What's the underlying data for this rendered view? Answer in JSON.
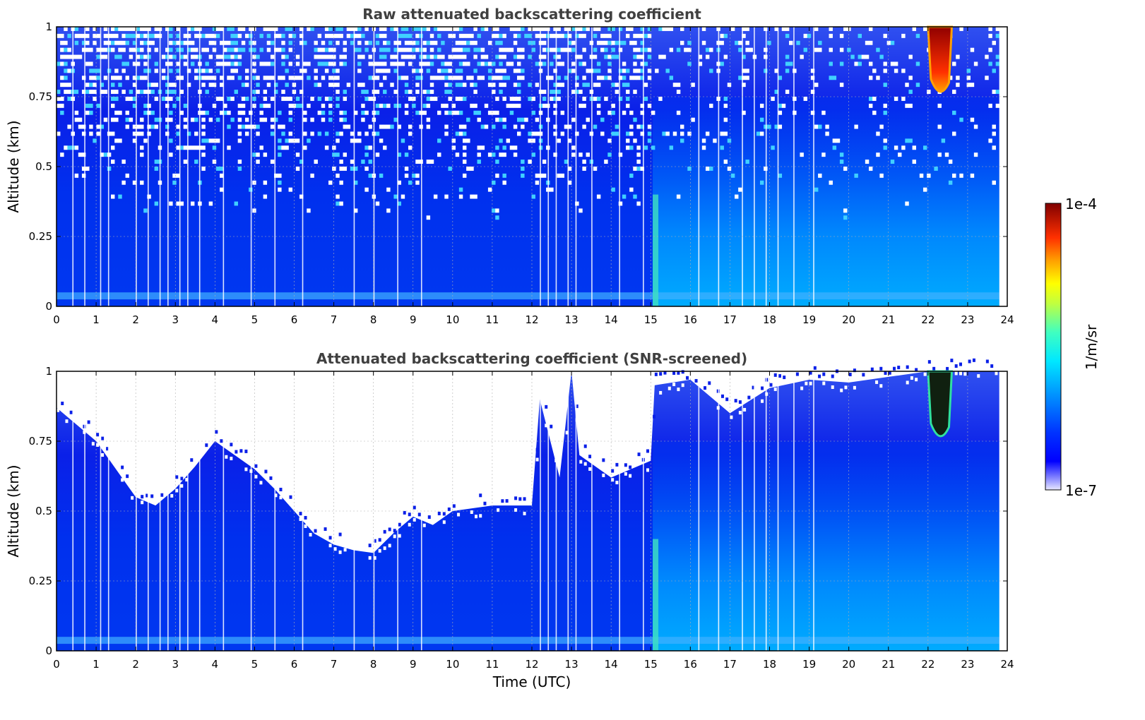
{
  "chart_data": [
    {
      "type": "heatmap",
      "title": "Raw attenuated backscattering coefficient",
      "xlabel": "",
      "ylabel": "Altitude (km)",
      "xlim": [
        0,
        24
      ],
      "ylim": [
        0,
        1
      ],
      "x_ticks": [
        "0",
        "1",
        "2",
        "3",
        "4",
        "5",
        "6",
        "7",
        "8",
        "9",
        "10",
        "11",
        "12",
        "13",
        "14",
        "15",
        "16",
        "17",
        "18",
        "19",
        "20",
        "21",
        "22",
        "23",
        "24"
      ],
      "y_ticks": [
        "0",
        "0.25",
        "0.5",
        "0.75",
        "1"
      ],
      "grid": true,
      "screened": false,
      "data_end_time": 23.8,
      "features": [
        {
          "description": "high backscatter plume",
          "time_range": [
            22.0,
            22.6
          ],
          "altitude_range": [
            0.75,
            1.0
          ]
        },
        {
          "description": "enhanced aerosol layer",
          "time_range": [
            15.0,
            23.8
          ],
          "altitude_range": [
            0.0,
            0.75
          ]
        }
      ]
    },
    {
      "type": "heatmap",
      "title": "Attenuated backscattering coefficient (SNR-screened)",
      "xlabel": "Time (UTC)",
      "ylabel": "Altitude (km)",
      "xlim": [
        0,
        24
      ],
      "ylim": [
        0,
        1
      ],
      "x_ticks": [
        "0",
        "1",
        "2",
        "3",
        "4",
        "5",
        "6",
        "7",
        "8",
        "9",
        "10",
        "11",
        "12",
        "13",
        "14",
        "15",
        "16",
        "17",
        "18",
        "19",
        "20",
        "21",
        "22",
        "23",
        "24"
      ],
      "y_ticks": [
        "0",
        "0.25",
        "0.5",
        "0.75",
        "1"
      ],
      "grid": true,
      "screened": true,
      "data_end_time": 23.8,
      "screen_boundary": [
        [
          0.0,
          0.87
        ],
        [
          1.0,
          0.75
        ],
        [
          1.5,
          0.65
        ],
        [
          2.0,
          0.55
        ],
        [
          2.5,
          0.52
        ],
        [
          3.0,
          0.58
        ],
        [
          3.5,
          0.66
        ],
        [
          4.0,
          0.75
        ],
        [
          4.5,
          0.7
        ],
        [
          5.0,
          0.65
        ],
        [
          5.5,
          0.58
        ],
        [
          6.0,
          0.5
        ],
        [
          6.5,
          0.42
        ],
        [
          7.0,
          0.38
        ],
        [
          7.5,
          0.36
        ],
        [
          8.0,
          0.35
        ],
        [
          8.5,
          0.42
        ],
        [
          9.0,
          0.48
        ],
        [
          9.5,
          0.45
        ],
        [
          10.0,
          0.5
        ],
        [
          11.0,
          0.52
        ],
        [
          12.0,
          0.52
        ],
        [
          12.2,
          0.9
        ],
        [
          12.7,
          0.62
        ],
        [
          13.0,
          1.0
        ],
        [
          13.2,
          0.7
        ],
        [
          14.0,
          0.62
        ],
        [
          15.0,
          0.68
        ],
        [
          15.1,
          0.95
        ],
        [
          16.0,
          0.97
        ],
        [
          17.0,
          0.85
        ],
        [
          18.0,
          0.94
        ],
        [
          19.0,
          0.97
        ],
        [
          20.0,
          0.96
        ],
        [
          21.0,
          0.98
        ],
        [
          22.0,
          1.0
        ],
        [
          23.8,
          1.0
        ]
      ]
    }
  ],
  "colorbar": {
    "min_label": "1e-7",
    "max_label": "1e-4",
    "label": "1/m/sr",
    "colormap": "jet"
  }
}
